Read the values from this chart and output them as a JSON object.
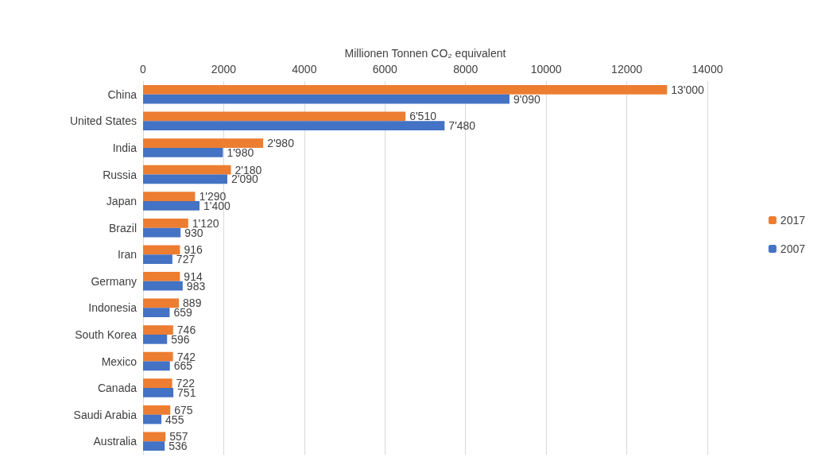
{
  "chart_data": {
    "type": "bar",
    "orientation": "horizontal",
    "xlabel": "Millionen Tonnen CO₂ equivalent",
    "categories": [
      "China",
      "United States",
      "India",
      "Russia",
      "Japan",
      "Brazil",
      "Iran",
      "Germany",
      "Indonesia",
      "South Korea",
      "Mexico",
      "Canada",
      "Saudi Arabia",
      "Australia"
    ],
    "series": [
      {
        "name": "2017",
        "color": "#ed7d31",
        "values": [
          13000,
          6510,
          2980,
          2180,
          1290,
          1120,
          916,
          914,
          889,
          746,
          742,
          722,
          675,
          557
        ],
        "value_labels": [
          "13'000",
          "6'510",
          "2'980",
          "2'180",
          "1'290",
          "1'120",
          "916",
          "914",
          "889",
          "746",
          "742",
          "722",
          "675",
          "557"
        ]
      },
      {
        "name": "2007",
        "color": "#4472c4",
        "values": [
          9090,
          7480,
          1980,
          2090,
          1400,
          930,
          727,
          983,
          659,
          596,
          665,
          751,
          455,
          536
        ],
        "value_labels": [
          "9'090",
          "7'480",
          "1'980",
          "2'090",
          "1'400",
          "930",
          "727",
          "983",
          "659",
          "596",
          "665",
          "751",
          "455",
          "536"
        ]
      }
    ],
    "xlim": [
      0,
      14000
    ],
    "xticks": [
      0,
      2000,
      4000,
      6000,
      8000,
      10000,
      12000,
      14000
    ],
    "grid": "x",
    "legend": "right"
  }
}
